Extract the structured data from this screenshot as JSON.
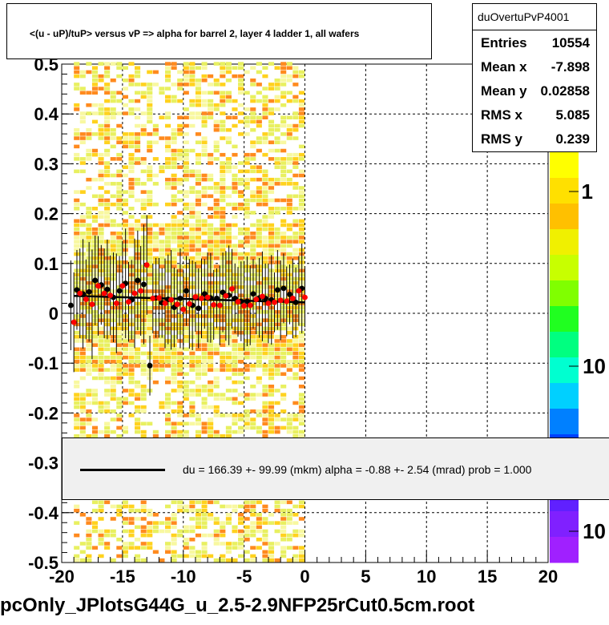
{
  "title": "<(u - uP)/tuP> versus   vP => alpha for barrel 2, layer 4 ladder 1, all wafers",
  "stats": {
    "name": "duOvertuPvP4001",
    "rows": [
      {
        "label": "Entries",
        "value": "10554"
      },
      {
        "label": "Mean x",
        "value": "-7.898"
      },
      {
        "label": "Mean y",
        "value": "0.02858"
      },
      {
        "label": "RMS x",
        "value": "5.085"
      },
      {
        "label": "RMS y",
        "value": "0.239"
      }
    ]
  },
  "legend": {
    "text": "du =  166.39 +- 99.99 (mkm) alpha =   -0.88 +-  2.54 (mrad) prob = 1.000"
  },
  "footer": "pcOnly_JPlotsG44G_u_2.5-2.9NFP25rCut0.5cm.root",
  "colors": {
    "red_points": "#ff0000",
    "black_points": "#000000",
    "fit_line": "#000000",
    "heatmap_low": "#e8f060",
    "heatmap_mid": "#ffd21e",
    "heatmap_high": "#ff8a1e"
  },
  "chart_data": {
    "type": "scatter",
    "xlim": [
      -20,
      20
    ],
    "ylim": [
      -0.5,
      0.5
    ],
    "x_ticks": [
      "-20",
      "-15",
      "-10",
      "-5",
      "0",
      "5",
      "10",
      "15",
      "20"
    ],
    "y_ticks": [
      "-0.5",
      "-0.4",
      "-0.3",
      "-0.2",
      "-0.1",
      "0",
      "0.1",
      "0.2",
      "0.3",
      "0.4",
      "0.5"
    ],
    "colorbar_labels": [
      "1",
      "10",
      "10"
    ],
    "grid": true,
    "heatmap_x_range": [
      -19,
      0
    ],
    "fit_line": {
      "x": [
        -19,
        0
      ],
      "y": [
        0.035,
        0.022
      ]
    },
    "series": [
      {
        "marker": "black",
        "x": [
          -19.25,
          -18.75,
          -18.25,
          -17.75,
          -17.25,
          -16.75,
          -16.25,
          -15.75,
          -15.25,
          -14.75,
          -14.25,
          -13.75,
          -13.25,
          -12.75,
          -12.25,
          -11.75,
          -11.25,
          -10.75,
          -10.25,
          -9.75,
          -9.25,
          -8.75,
          -8.25,
          -7.75,
          -7.25,
          -6.75,
          -6.25,
          -5.75,
          -5.25,
          -4.75,
          -4.25,
          -3.75,
          -3.25,
          -2.75,
          -2.25,
          -1.75,
          -1.25,
          -0.75,
          -0.25
        ],
        "y": [
          0.016,
          0.047,
          0.039,
          0.043,
          0.066,
          0.057,
          0.048,
          0.032,
          0.045,
          0.06,
          0.027,
          0.066,
          0.058,
          -0.105,
          0.031,
          0.021,
          0.028,
          0.012,
          0.03,
          0.045,
          0.016,
          0.01,
          0.039,
          0.031,
          0.03,
          0.042,
          0.036,
          0.03,
          0.024,
          0.024,
          0.039,
          0.031,
          0.03,
          0.027,
          0.047,
          0.05,
          0.038,
          0.022,
          0.05
        ],
        "err": [
          0.09,
          0.08,
          0.11,
          0.1,
          0.09,
          0.08,
          0.1,
          0.09,
          0.07,
          0.11,
          0.08,
          0.1,
          0.12,
          0.06,
          0.08,
          0.07,
          0.09,
          0.08,
          0.1,
          0.07,
          0.09,
          0.08,
          0.07,
          0.09,
          0.06,
          0.08,
          0.1,
          0.07,
          0.08,
          0.09,
          0.07,
          0.08,
          0.07,
          0.09,
          0.08,
          0.07,
          0.06,
          0.07,
          0.09
        ]
      },
      {
        "marker": "red",
        "x": [
          -19.0,
          -18.5,
          -18.0,
          -17.5,
          -17.0,
          -16.5,
          -16.0,
          -15.5,
          -15.0,
          -14.5,
          -14.0,
          -13.5,
          -13.0,
          -12.5,
          -12.0,
          -11.5,
          -11.0,
          -10.5,
          -10.0,
          -9.5,
          -9.0,
          -8.5,
          -8.0,
          -7.5,
          -7.0,
          -6.5,
          -6.0,
          -5.5,
          -5.0,
          -4.5,
          -4.0,
          -3.5,
          -3.0,
          -2.5,
          -2.0,
          -1.5,
          -1.0,
          -0.5,
          0.0
        ],
        "y": [
          -0.018,
          0.04,
          0.028,
          0.018,
          0.055,
          0.04,
          0.036,
          0.02,
          0.055,
          0.023,
          0.04,
          0.045,
          0.097,
          0.03,
          0.031,
          0.02,
          0.027,
          0.018,
          0.008,
          0.019,
          0.033,
          0.03,
          0.032,
          0.017,
          0.016,
          0.035,
          0.049,
          0.023,
          0.015,
          0.016,
          0.028,
          0.034,
          0.02,
          0.022,
          0.026,
          0.024,
          0.03,
          0.045,
          0.032
        ],
        "err": [
          0.1,
          0.09,
          0.08,
          0.11,
          0.1,
          0.09,
          0.08,
          0.1,
          0.09,
          0.08,
          0.11,
          0.09,
          0.1,
          0.07,
          0.08,
          0.09,
          0.1,
          0.07,
          0.08,
          0.09,
          0.07,
          0.08,
          0.09,
          0.07,
          0.08,
          0.09,
          0.08,
          0.07,
          0.09,
          0.08,
          0.07,
          0.09,
          0.08,
          0.06,
          0.08,
          0.07,
          0.08,
          0.07,
          0.06
        ]
      }
    ]
  }
}
